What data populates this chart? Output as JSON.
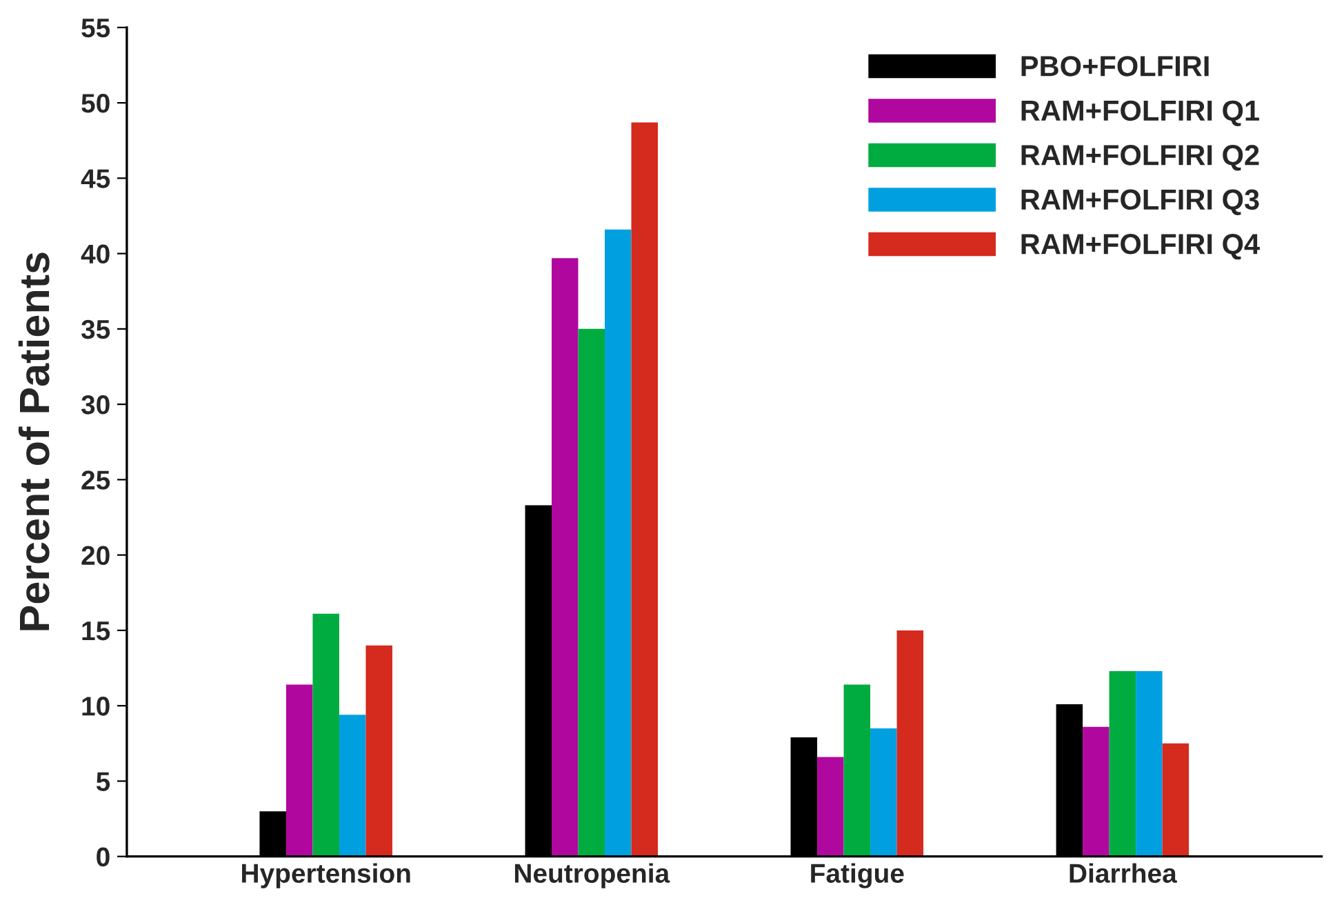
{
  "chart_data": {
    "type": "bar",
    "ylabel": "Percent of Patients",
    "categories": [
      "Hypertension",
      "Neutropenia",
      "Fatigue",
      "Diarrhea"
    ],
    "series": [
      {
        "name": "PBO+FOLFIRI",
        "color": "#000000",
        "values": [
          3.0,
          23.3,
          7.9,
          10.1
        ]
      },
      {
        "name": "RAM+FOLFIRI Q1",
        "color": "#b0089e",
        "values": [
          11.4,
          39.7,
          6.6,
          8.6
        ]
      },
      {
        "name": "RAM+FOLFIRI Q2",
        "color": "#00ac40",
        "values": [
          16.1,
          35.0,
          11.4,
          12.3
        ]
      },
      {
        "name": "RAM+FOLFIRI Q3",
        "color": "#00a0e0",
        "values": [
          9.4,
          41.6,
          8.5,
          12.3
        ]
      },
      {
        "name": "RAM+FOLFIRI Q4",
        "color": "#d52a1e",
        "values": [
          14.0,
          48.7,
          15.0,
          7.5
        ]
      }
    ],
    "ylim": [
      0,
      55
    ],
    "yticks": [
      0,
      5,
      10,
      15,
      20,
      25,
      30,
      35,
      40,
      45,
      50,
      55
    ],
    "grid": false,
    "legend": "top right"
  }
}
